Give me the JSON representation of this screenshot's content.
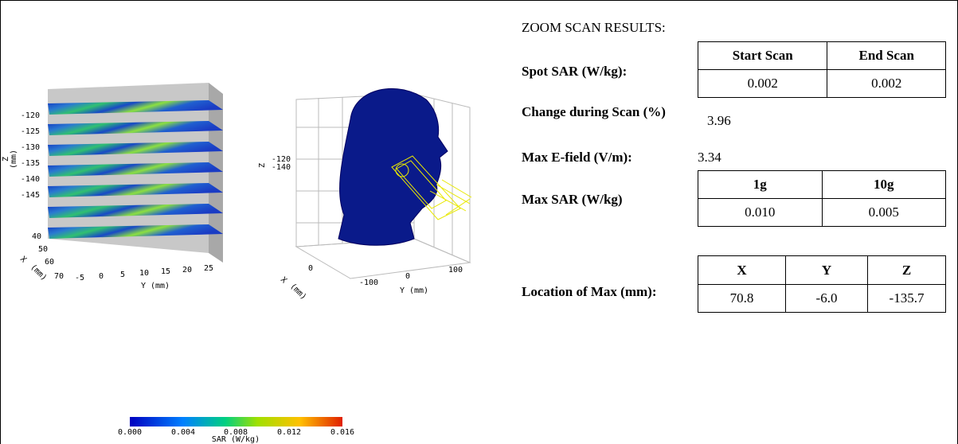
{
  "plots": {
    "left": {
      "z_label": "Z",
      "z_unit": "(mm)",
      "z_ticks": [
        "-120",
        "-125",
        "-130",
        "-135",
        "-140",
        "-145"
      ],
      "x_label": "X",
      "x_unit": "(mm)",
      "x_ticks": [
        "40",
        "50",
        "60",
        "70"
      ],
      "y_ticks": [
        "-5",
        "0",
        "5",
        "10",
        "15",
        "20",
        "25"
      ],
      "y_label": "Y (mm)"
    },
    "right": {
      "z_label": "Z",
      "z_ticks": [
        "-120",
        "-140"
      ],
      "x_label": "X",
      "x_unit": "(mm)",
      "x_ticks": [
        "0"
      ],
      "y_ticks": [
        "-100",
        "0",
        "100"
      ],
      "y_label": "Y (mm)"
    },
    "colorbar": {
      "ticks": [
        "0.000",
        "0.004",
        "0.008",
        "0.012",
        "0.016"
      ],
      "label": "SAR (W/kg)"
    }
  },
  "results": {
    "title": "ZOOM SCAN RESULTS:",
    "spot_sar": {
      "label": "Spot SAR (W/kg):",
      "headers": [
        "Start Scan",
        "End Scan"
      ],
      "values": [
        "0.002",
        "0.002"
      ]
    },
    "change": {
      "label": "Change during Scan (%)",
      "value": "3.96"
    },
    "max_e_field": {
      "label": "Max E-field (V/m):",
      "value": "3.34"
    },
    "max_sar": {
      "label": "Max SAR (W/kg)",
      "headers": [
        "1g",
        "10g"
      ],
      "values": [
        "0.010",
        "0.005"
      ]
    },
    "location": {
      "label": "Location of Max (mm):",
      "headers": [
        "X",
        "Y",
        "Z"
      ],
      "values": [
        "70.8",
        "-6.0",
        "-135.7"
      ]
    }
  }
}
